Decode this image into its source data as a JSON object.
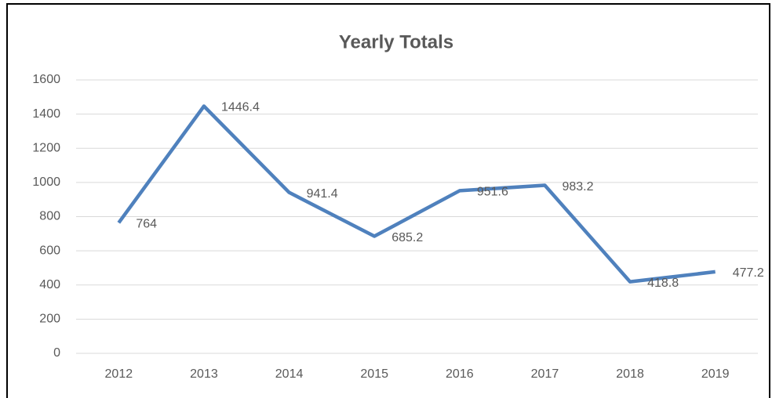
{
  "chart_data": {
    "type": "line",
    "title": "Yearly Totals",
    "categories": [
      "2012",
      "2013",
      "2014",
      "2015",
      "2016",
      "2017",
      "2018",
      "2019"
    ],
    "series": [
      {
        "name": "Yearly Totals",
        "color": "#4f81bd",
        "values": [
          764,
          1446.4,
          941.4,
          685.2,
          951.6,
          983.2,
          418.8,
          477.2
        ]
      }
    ],
    "ylim": [
      0,
      1600
    ],
    "yticks": [
      0,
      200,
      400,
      600,
      800,
      1000,
      1200,
      1400,
      1600
    ],
    "grid": true,
    "data_labels": true
  }
}
